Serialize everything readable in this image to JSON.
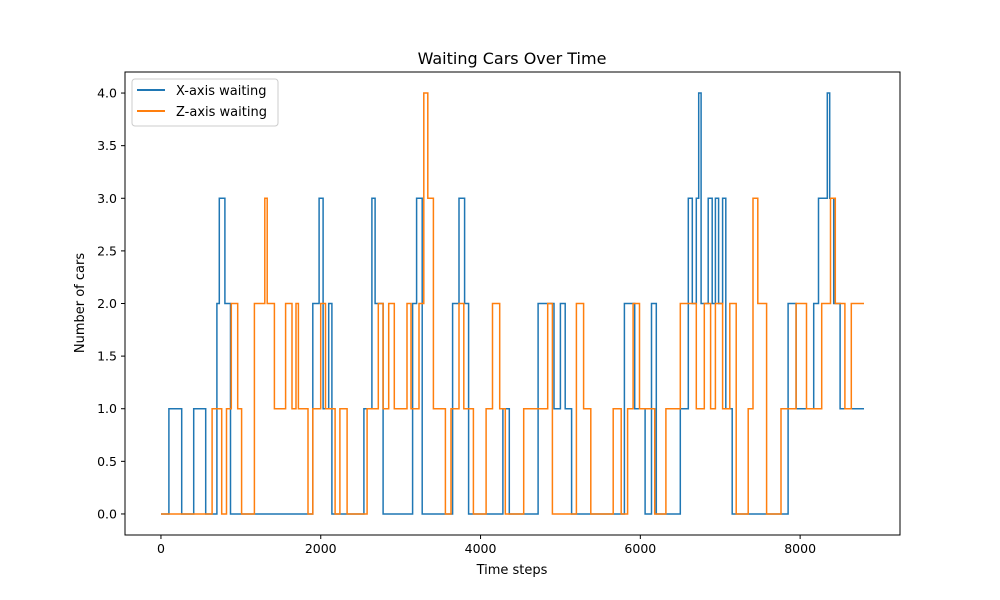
{
  "chart_data": {
    "type": "line",
    "title": "Waiting Cars Over Time",
    "xlabel": "Time steps",
    "ylabel": "Number of cars",
    "xlim": [
      -450,
      9250
    ],
    "ylim": [
      -0.2,
      4.2
    ],
    "xticks": [
      0,
      2000,
      4000,
      6000,
      8000
    ],
    "yticks": [
      "0.0",
      "0.5",
      "1.0",
      "1.5",
      "2.0",
      "2.5",
      "3.0",
      "3.5",
      "4.0"
    ],
    "grid": false,
    "legend_placement": "top-left",
    "series": [
      {
        "name": "X-axis waiting",
        "color": "#1f77b4",
        "segments": [
          [
            0,
            100,
            0
          ],
          [
            100,
            260,
            1
          ],
          [
            260,
            410,
            0
          ],
          [
            410,
            560,
            1
          ],
          [
            560,
            700,
            0
          ],
          [
            700,
            730,
            2
          ],
          [
            730,
            800,
            3
          ],
          [
            800,
            870,
            2
          ],
          [
            870,
            1900,
            0
          ],
          [
            1900,
            1980,
            2
          ],
          [
            1980,
            2030,
            3
          ],
          [
            2030,
            2100,
            1
          ],
          [
            2100,
            2140,
            2
          ],
          [
            2140,
            2540,
            0
          ],
          [
            2540,
            2640,
            1
          ],
          [
            2640,
            2680,
            3
          ],
          [
            2680,
            2780,
            2
          ],
          [
            2780,
            3150,
            0
          ],
          [
            3150,
            3200,
            2
          ],
          [
            3200,
            3270,
            3
          ],
          [
            3270,
            3650,
            0
          ],
          [
            3650,
            3730,
            2
          ],
          [
            3730,
            3800,
            3
          ],
          [
            3800,
            3850,
            2
          ],
          [
            3850,
            4280,
            0
          ],
          [
            4280,
            4360,
            1
          ],
          [
            4360,
            4720,
            0
          ],
          [
            4720,
            4920,
            2
          ],
          [
            4920,
            5000,
            1
          ],
          [
            5000,
            5060,
            2
          ],
          [
            5060,
            5140,
            1
          ],
          [
            5140,
            5800,
            0
          ],
          [
            5800,
            5930,
            2
          ],
          [
            5930,
            6060,
            1
          ],
          [
            6060,
            6140,
            0
          ],
          [
            6140,
            6200,
            2
          ],
          [
            6200,
            6500,
            0
          ],
          [
            6500,
            6600,
            1
          ],
          [
            6600,
            6650,
            3
          ],
          [
            6650,
            6700,
            2
          ],
          [
            6700,
            6730,
            3
          ],
          [
            6730,
            6760,
            4
          ],
          [
            6760,
            6850,
            2
          ],
          [
            6850,
            6900,
            3
          ],
          [
            6900,
            6940,
            2
          ],
          [
            6940,
            6980,
            3
          ],
          [
            6980,
            7030,
            2
          ],
          [
            7030,
            7070,
            3
          ],
          [
            7070,
            7150,
            1
          ],
          [
            7150,
            7850,
            0
          ],
          [
            7850,
            7950,
            2
          ],
          [
            7950,
            8170,
            1
          ],
          [
            8170,
            8230,
            2
          ],
          [
            8230,
            8340,
            3
          ],
          [
            8340,
            8370,
            4
          ],
          [
            8370,
            8420,
            3
          ],
          [
            8420,
            8500,
            2
          ],
          [
            8500,
            8800,
            1
          ]
        ]
      },
      {
        "name": "Z-axis waiting",
        "color": "#ff7f0e",
        "segments": [
          [
            0,
            640,
            0
          ],
          [
            640,
            760,
            1
          ],
          [
            760,
            820,
            0
          ],
          [
            820,
            880,
            1
          ],
          [
            880,
            960,
            2
          ],
          [
            960,
            1010,
            1
          ],
          [
            1010,
            1170,
            0
          ],
          [
            1170,
            1300,
            2
          ],
          [
            1300,
            1330,
            3
          ],
          [
            1330,
            1420,
            2
          ],
          [
            1420,
            1560,
            1
          ],
          [
            1560,
            1640,
            2
          ],
          [
            1640,
            1690,
            1
          ],
          [
            1690,
            1720,
            2
          ],
          [
            1720,
            1840,
            1
          ],
          [
            1840,
            1900,
            0
          ],
          [
            1900,
            2000,
            1
          ],
          [
            2000,
            2060,
            2
          ],
          [
            2060,
            2180,
            1
          ],
          [
            2180,
            2240,
            0
          ],
          [
            2240,
            2330,
            1
          ],
          [
            2330,
            2580,
            0
          ],
          [
            2580,
            2720,
            1
          ],
          [
            2720,
            2780,
            2
          ],
          [
            2780,
            2850,
            1
          ],
          [
            2850,
            2920,
            2
          ],
          [
            2920,
            3080,
            1
          ],
          [
            3080,
            3130,
            2
          ],
          [
            3130,
            3230,
            1
          ],
          [
            3230,
            3290,
            2
          ],
          [
            3290,
            3340,
            4
          ],
          [
            3340,
            3410,
            3
          ],
          [
            3410,
            3560,
            1
          ],
          [
            3560,
            3630,
            0
          ],
          [
            3630,
            3730,
            1
          ],
          [
            3730,
            3790,
            2
          ],
          [
            3790,
            3910,
            1
          ],
          [
            3910,
            4070,
            0
          ],
          [
            4070,
            4150,
            1
          ],
          [
            4150,
            4240,
            2
          ],
          [
            4240,
            4310,
            1
          ],
          [
            4310,
            4540,
            0
          ],
          [
            4540,
            4840,
            1
          ],
          [
            4840,
            4900,
            2
          ],
          [
            4900,
            5200,
            0
          ],
          [
            5200,
            5290,
            2
          ],
          [
            5290,
            5380,
            1
          ],
          [
            5380,
            5660,
            0
          ],
          [
            5660,
            5760,
            1
          ],
          [
            5760,
            5840,
            0
          ],
          [
            5840,
            5910,
            1
          ],
          [
            5910,
            5990,
            2
          ],
          [
            5990,
            6180,
            1
          ],
          [
            6180,
            6320,
            0
          ],
          [
            6320,
            6500,
            1
          ],
          [
            6500,
            6700,
            2
          ],
          [
            6700,
            6800,
            1
          ],
          [
            6800,
            6880,
            2
          ],
          [
            6880,
            6940,
            1
          ],
          [
            6940,
            7030,
            2
          ],
          [
            7030,
            7120,
            1
          ],
          [
            7120,
            7200,
            2
          ],
          [
            7200,
            7350,
            0
          ],
          [
            7350,
            7410,
            1
          ],
          [
            7410,
            7470,
            3
          ],
          [
            7470,
            7580,
            2
          ],
          [
            7580,
            7760,
            0
          ],
          [
            7760,
            7950,
            1
          ],
          [
            7950,
            8080,
            2
          ],
          [
            8080,
            8270,
            1
          ],
          [
            8270,
            8380,
            2
          ],
          [
            8380,
            8440,
            3
          ],
          [
            8440,
            8560,
            2
          ],
          [
            8560,
            8640,
            1
          ],
          [
            8640,
            8800,
            2
          ]
        ]
      }
    ]
  }
}
